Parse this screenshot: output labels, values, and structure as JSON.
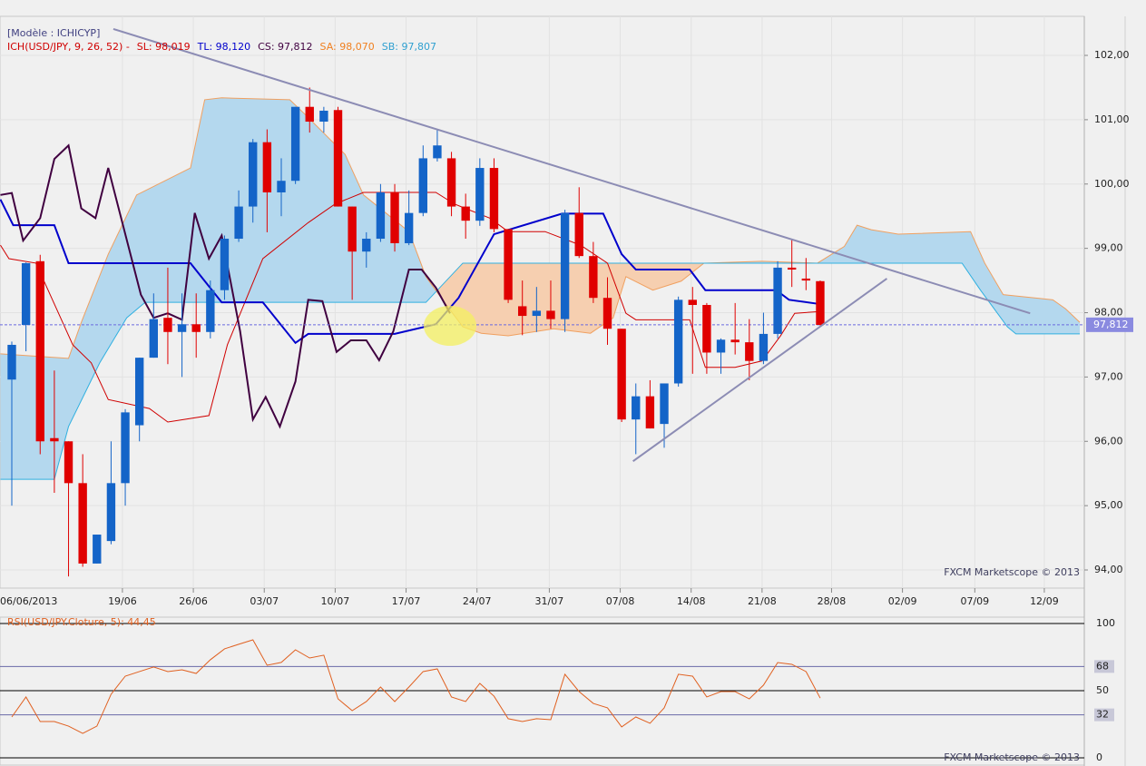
{
  "chart_data": {
    "type": "candlestick",
    "model": "[Modèle : ICHICYP]",
    "legend": [
      {
        "text": "ICH(USD/JPY, 9, 26, 52) -",
        "color": "#d00000"
      },
      {
        "text": "SL: 98,019",
        "color": "#d00000"
      },
      {
        "text": "TL: 98,120",
        "color": "#0000cc"
      },
      {
        "text": "CS: 97,812",
        "color": "#400040"
      },
      {
        "text": "SA: 98,070",
        "color": "#f08020"
      },
      {
        "text": "SB: 97,807",
        "color": "#30a0d0"
      }
    ],
    "watermark": "FXCM Marketscope © 2013",
    "up_color": "#1464c8",
    "down_color": "#e00000",
    "xlim": [
      -0.832,
      75.62
    ],
    "ylim": [
      93.718,
      102.607
    ],
    "yticks": [
      {
        "value": 94,
        "label": "94,00"
      },
      {
        "value": 95,
        "label": "95,00"
      },
      {
        "value": 96,
        "label": "96,00"
      },
      {
        "value": 97,
        "label": "97,00"
      },
      {
        "value": 98,
        "label": "98,00"
      },
      {
        "value": 99,
        "label": "99,00"
      },
      {
        "value": 100,
        "label": "100,00"
      },
      {
        "value": 101,
        "label": "101,00"
      },
      {
        "value": 102,
        "label": "102,00"
      }
    ],
    "xticks": [
      {
        "value": -1.2,
        "label": "06/06/2013"
      },
      {
        "value": 7.8,
        "label": "19/06"
      },
      {
        "value": 12.8,
        "label": "26/06"
      },
      {
        "value": 17.8,
        "label": "03/07"
      },
      {
        "value": 22.8,
        "label": "10/07"
      },
      {
        "value": 27.8,
        "label": "17/07"
      },
      {
        "value": 32.8,
        "label": "24/07"
      },
      {
        "value": 37.9,
        "label": "31/07"
      },
      {
        "value": 42.9,
        "label": "07/08"
      },
      {
        "value": 47.9,
        "label": "14/08"
      },
      {
        "value": 52.9,
        "label": "21/08"
      },
      {
        "value": 57.8,
        "label": "28/08"
      },
      {
        "value": 62.8,
        "label": "02/09"
      },
      {
        "value": 67.9,
        "label": "07/09"
      },
      {
        "value": 72.8,
        "label": "12/09"
      }
    ],
    "grid": true,
    "last_price": {
      "value": 97.812,
      "label": "97,812"
    },
    "open": [
      96.96,
      97.81,
      98.8,
      96.05,
      96.0,
      95.35,
      94.1,
      94.45,
      95.35,
      96.25,
      97.3,
      97.92,
      97.7,
      97.82,
      97.7,
      98.35,
      99.15,
      99.65,
      100.65,
      99.87,
      100.05,
      101.2,
      100.97,
      101.15,
      99.65,
      98.95,
      99.15,
      99.87,
      99.08,
      99.55,
      100.4,
      100.4,
      99.65,
      99.43,
      100.25,
      99.3,
      98.1,
      97.95,
      98.03,
      97.9,
      99.55,
      98.88,
      98.23,
      97.75,
      96.34,
      96.7,
      96.27,
      96.9,
      98.2,
      98.12,
      97.38,
      97.58,
      97.54,
      97.25,
      97.67,
      98.7,
      98.53,
      98.49
    ],
    "high": [
      97.55,
      98.78,
      98.9,
      97.1,
      96.0,
      95.8,
      94.55,
      96.0,
      96.5,
      97.3,
      98.3,
      98.7,
      98.3,
      98.3,
      98.5,
      99.2,
      99.9,
      100.7,
      100.85,
      100.4,
      101.2,
      101.5,
      101.2,
      101.2,
      99.65,
      99.25,
      100.0,
      100.0,
      99.9,
      100.6,
      100.85,
      100.5,
      99.85,
      100.4,
      100.4,
      99.3,
      98.5,
      98.4,
      98.5,
      99.6,
      99.95,
      99.1,
      98.55,
      97.75,
      96.9,
      96.95,
      96.9,
      98.25,
      98.4,
      98.15,
      97.6,
      98.15,
      97.9,
      98.0,
      98.8,
      99.15,
      98.85,
      98.5
    ],
    "low": [
      95.0,
      97.4,
      95.8,
      95.2,
      93.9,
      94.05,
      94.1,
      94.4,
      95.0,
      96.0,
      97.3,
      97.2,
      97.0,
      97.3,
      97.6,
      98.2,
      99.1,
      99.4,
      99.25,
      99.5,
      100.0,
      100.8,
      100.8,
      99.65,
      98.2,
      98.7,
      99.1,
      98.95,
      99.05,
      99.5,
      100.35,
      99.5,
      99.15,
      99.35,
      99.25,
      98.15,
      97.65,
      97.7,
      97.75,
      97.7,
      98.85,
      98.15,
      97.5,
      96.3,
      95.8,
      96.2,
      95.9,
      96.85,
      97.05,
      97.05,
      97.05,
      97.35,
      96.95,
      97.2,
      97.6,
      98.4,
      98.35,
      97.8
    ],
    "close": [
      97.5,
      98.77,
      96.0,
      96.0,
      95.35,
      94.1,
      94.55,
      95.35,
      96.45,
      97.3,
      97.9,
      97.7,
      97.82,
      97.7,
      98.35,
      99.15,
      99.65,
      100.65,
      99.87,
      100.05,
      101.2,
      100.97,
      101.14,
      99.65,
      98.95,
      99.15,
      99.87,
      99.08,
      99.55,
      100.4,
      100.6,
      99.65,
      99.43,
      100.25,
      99.3,
      98.2,
      97.95,
      98.03,
      97.9,
      99.55,
      98.88,
      98.23,
      97.75,
      96.34,
      96.7,
      96.2,
      96.9,
      98.2,
      98.12,
      97.38,
      97.58,
      97.54,
      97.25,
      97.67,
      98.7,
      98.67,
      98.5,
      97.81
    ],
    "cloud": {
      "up_fill": "#b4d8ee",
      "down_fill": "#f6cfb0",
      "a": {
        "color": "#f0a060",
        "x": [
          -0.8,
          4.0,
          4.9,
          6.8,
          8.8,
          12.6,
          13.6,
          14.8,
          19.6,
          20.6,
          23.5,
          24.8,
          28.0,
          29.2,
          30.5,
          31.8,
          33.1,
          35.0,
          38.2,
          40.8,
          42.4,
          43.3,
          45.2,
          47.2,
          48.8,
          52.9,
          56.8,
          58.7,
          59.6,
          60.6,
          62.5,
          67.6,
          68.6,
          69.9,
          73.4,
          74.3,
          75.3
        ],
        "values": [
          97.36,
          97.29,
          97.85,
          98.91,
          99.83,
          100.25,
          101.31,
          101.34,
          101.31,
          101.1,
          100.46,
          99.83,
          99.26,
          98.56,
          98.16,
          97.78,
          97.68,
          97.64,
          97.75,
          97.68,
          97.92,
          98.56,
          98.35,
          98.49,
          98.77,
          98.8,
          98.77,
          99.03,
          99.36,
          99.29,
          99.22,
          99.26,
          98.77,
          98.28,
          98.2,
          98.06,
          97.85
        ]
      },
      "b": {
        "color": "#30b0e0",
        "x": [
          -0.8,
          3.0,
          4.0,
          6.2,
          8.1,
          9.4,
          29.2,
          31.8,
          67.0,
          68.3,
          70.2,
          70.8,
          75.3
        ],
        "values": [
          95.41,
          95.41,
          96.23,
          97.22,
          97.92,
          98.16,
          98.16,
          98.77,
          98.77,
          98.35,
          97.78,
          97.67,
          97.67
        ]
      }
    },
    "lines": [
      {
        "color": "#d00000",
        "width": 1,
        "x": [
          -0.8,
          -0.2,
          1.7,
          4.3,
          5.6,
          6.8,
          9.7,
          11.0,
          13.9,
          15.2,
          17.7,
          20.9,
          22.8,
          24.8,
          29.9,
          31.2,
          33.7,
          35.0,
          37.6,
          40.1,
          42.0,
          43.3,
          44.0,
          47.8,
          48.9,
          51.0,
          52.9,
          54.2,
          55.2,
          57.1
        ],
        "values": [
          99.05,
          98.84,
          98.77,
          97.5,
          97.22,
          96.65,
          96.51,
          96.3,
          96.4,
          97.5,
          98.84,
          99.4,
          99.69,
          99.87,
          99.87,
          99.69,
          99.47,
          99.26,
          99.26,
          99.05,
          98.77,
          97.99,
          97.89,
          97.89,
          97.15,
          97.15,
          97.25,
          97.64,
          97.99,
          98.02
        ]
      },
      {
        "color": "#0000cc",
        "width": 2,
        "x": [
          -0.8,
          0.1,
          3.0,
          4.0,
          12.6,
          14.8,
          17.7,
          20.0,
          20.9,
          27.0,
          29.9,
          31.5,
          34.0,
          38.8,
          41.7,
          43.0,
          44.0,
          47.8,
          48.9,
          53.9,
          54.8,
          57.1
        ],
        "values": [
          99.76,
          99.36,
          99.36,
          98.77,
          98.77,
          98.16,
          98.16,
          97.53,
          97.67,
          97.67,
          97.82,
          98.23,
          99.22,
          99.54,
          99.54,
          98.91,
          98.67,
          98.67,
          98.35,
          98.35,
          98.2,
          98.13
        ]
      },
      {
        "color": "#400040",
        "width": 2,
        "x": [
          -0.8,
          0,
          0.8,
          2.0,
          3.0,
          4.0,
          4.9,
          5.9,
          6.8,
          9.1,
          10.0,
          11.0,
          12.0,
          12.9,
          13.9,
          14.8,
          16.1,
          17.0,
          17.9,
          18.9,
          20.0,
          20.9,
          21.9,
          22.9,
          23.9,
          25.0,
          25.9,
          26.9,
          28.0,
          28.9,
          29.9,
          30.9
        ],
        "values": [
          99.83,
          99.86,
          99.12,
          99.47,
          100.39,
          100.6,
          99.62,
          99.47,
          100.25,
          98.28,
          97.92,
          97.99,
          97.89,
          99.55,
          98.84,
          99.2,
          97.71,
          96.34,
          96.69,
          96.23,
          96.93,
          98.2,
          98.18,
          97.39,
          97.57,
          97.57,
          97.26,
          97.71,
          98.67,
          98.67,
          98.39,
          97.99
        ]
      }
    ],
    "trendlines": [
      {
        "color": "#8c8cb4",
        "x": [
          7.16,
          71.8
        ],
        "values": [
          102.41,
          97.99
        ]
      },
      {
        "color": "#8c8cb4",
        "x": [
          43.8,
          61.7
        ],
        "values": [
          95.69,
          98.53
        ]
      }
    ],
    "rsi": {
      "title": "RSI(USD/JPY.Cloture, 5): 44,45",
      "color": "#e06020",
      "ylim": [
        -5.4,
        104.7
      ],
      "yticks": [
        100,
        68,
        50,
        32,
        0
      ],
      "tick_colors": [
        "#000000",
        "#6a6aa8",
        "#000000",
        "#6a6aa8",
        "#000000"
      ],
      "values": [
        30.4,
        45.3,
        27,
        27,
        23.6,
        18.2,
        23.6,
        47.3,
        60.8,
        64.2,
        67.6,
        64.2,
        65.5,
        62.8,
        73,
        81.1,
        84.5,
        87.8,
        68.9,
        71,
        80.4,
        74.3,
        76.4,
        43.9,
        35.1,
        41.9,
        52.7,
        41.9,
        52.7,
        64.2,
        66.2,
        45.3,
        41.9,
        55.4,
        45.9,
        29.1,
        27,
        29.1,
        28.4,
        62.2,
        49.3,
        40.5,
        37.2,
        23,
        30.4,
        25.7,
        37.2,
        62.2,
        60.8,
        45.3,
        49.3,
        49.3,
        43.9,
        54.1,
        70.9,
        69.6,
        64.2,
        44.45
      ]
    }
  }
}
